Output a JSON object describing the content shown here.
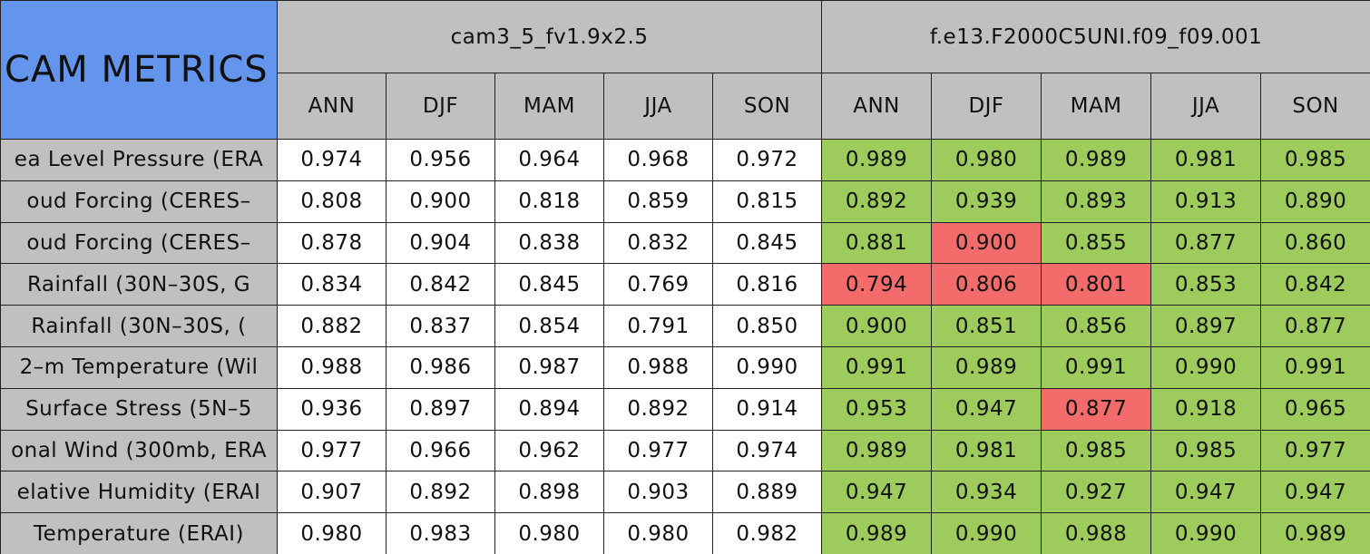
{
  "table": {
    "title": "CAM METRICS",
    "models": [
      "cam3_5_fv1.9x2.5",
      "f.e13.F2000C5UNI.f09_f09.001"
    ],
    "seasons": [
      [
        "ANN",
        "DJF",
        "MAM",
        "JJA",
        "SON"
      ],
      [
        "ANN",
        "DJF",
        "MAM",
        "JJA",
        "SON"
      ]
    ],
    "colors": {
      "header": "#c0c0c0",
      "title": "#6495ed",
      "model_0": "#ffffff",
      "model_1": "#9dcc5c",
      "worse": "#f46b6b"
    },
    "rows": [
      {
        "label": "ea Level Pressure (ERA",
        "values": [
          "0.974",
          "0.956",
          "0.964",
          "0.968",
          "0.972",
          "0.989",
          "0.980",
          "0.989",
          "0.981",
          "0.985"
        ],
        "worse": []
      },
      {
        "label": "oud Forcing (CERES–",
        "values": [
          "0.808",
          "0.900",
          "0.818",
          "0.859",
          "0.815",
          "0.892",
          "0.939",
          "0.893",
          "0.913",
          "0.890"
        ],
        "worse": []
      },
      {
        "label": "oud Forcing (CERES–",
        "values": [
          "0.878",
          "0.904",
          "0.838",
          "0.832",
          "0.845",
          "0.881",
          "0.900",
          "0.855",
          "0.877",
          "0.860"
        ],
        "worse": [
          6
        ]
      },
      {
        "label": "Rainfall (30N–30S, G",
        "values": [
          "0.834",
          "0.842",
          "0.845",
          "0.769",
          "0.816",
          "0.794",
          "0.806",
          "0.801",
          "0.853",
          "0.842"
        ],
        "worse": [
          5,
          6,
          7
        ]
      },
      {
        "label": "Rainfall (30N–30S, (",
        "values": [
          "0.882",
          "0.837",
          "0.854",
          "0.791",
          "0.850",
          "0.900",
          "0.851",
          "0.856",
          "0.897",
          "0.877"
        ],
        "worse": []
      },
      {
        "label": "2–m Temperature (Wil",
        "values": [
          "0.988",
          "0.986",
          "0.987",
          "0.988",
          "0.990",
          "0.991",
          "0.989",
          "0.991",
          "0.990",
          "0.991"
        ],
        "worse": []
      },
      {
        "label": "Surface Stress (5N–5",
        "values": [
          "0.936",
          "0.897",
          "0.894",
          "0.892",
          "0.914",
          "0.953",
          "0.947",
          "0.877",
          "0.918",
          "0.965"
        ],
        "worse": [
          7
        ]
      },
      {
        "label": "onal Wind (300mb, ERA",
        "values": [
          "0.977",
          "0.966",
          "0.962",
          "0.977",
          "0.974",
          "0.989",
          "0.981",
          "0.985",
          "0.985",
          "0.977"
        ],
        "worse": []
      },
      {
        "label": "elative Humidity (ERAI",
        "values": [
          "0.907",
          "0.892",
          "0.898",
          "0.903",
          "0.889",
          "0.947",
          "0.934",
          "0.927",
          "0.947",
          "0.947"
        ],
        "worse": []
      },
      {
        "label": "Temperature (ERAI)",
        "values": [
          "0.980",
          "0.983",
          "0.980",
          "0.980",
          "0.982",
          "0.989",
          "0.990",
          "0.988",
          "0.990",
          "0.989"
        ],
        "worse": []
      }
    ]
  }
}
